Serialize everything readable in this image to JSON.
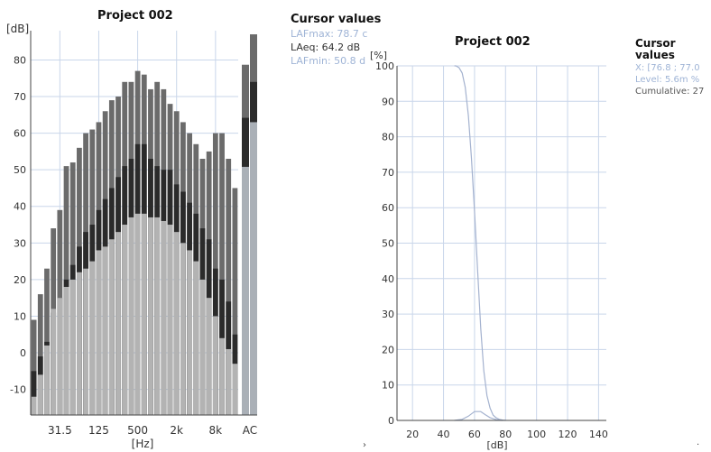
{
  "left_panel": {
    "title": "Project 002",
    "unit_label": "[dB]",
    "cursor": {
      "heading": "Cursor values",
      "lafmax": "LAFmax: 78.7 c",
      "laeq": "LAeq: 64.2 dB",
      "lafmin": "LAFmin: 50.8 d"
    }
  },
  "right_panel": {
    "title": "Project 002",
    "unit_label": "[%]",
    "cursor": {
      "heading": "Cursor values",
      "x": "X: [76.8 ; 77.0",
      "level": "Level: 5.6m %",
      "cumulative": "Cumulative: 27"
    }
  },
  "colors": {
    "lafmax": "#6b6b6b",
    "laeq": "#2b2b2b",
    "lafmin": "#b3b3b3",
    "ac_lafmin": "#aab0b7",
    "grid": "#c9d6ea",
    "curve": "#a4b2cf"
  },
  "chart_data": [
    {
      "type": "bar",
      "title": "Project 002",
      "ylabel": "[dB]",
      "xlabel": "[Hz]",
      "ylim": [
        -17,
        88
      ],
      "yticks": [
        -10,
        0,
        10,
        20,
        30,
        40,
        50,
        60,
        70,
        80
      ],
      "xtick_labels": [
        {
          "label": "31.5",
          "index": 4
        },
        {
          "label": "125",
          "index": 10
        },
        {
          "label": "500",
          "index": 16
        },
        {
          "label": "2k",
          "index": 22
        },
        {
          "label": "8k",
          "index": 28
        },
        {
          "label": "AC",
          "index": 31.5
        }
      ],
      "grid": true,
      "stacked": "overlay",
      "series": [
        {
          "key": "lafmax",
          "values": [
            9,
            16,
            23,
            34,
            39,
            51,
            52,
            56,
            60,
            61,
            63,
            66,
            69,
            70,
            74,
            74,
            77,
            76,
            72,
            74,
            72,
            68,
            66,
            63,
            60,
            57,
            53,
            55,
            60,
            60,
            53,
            45
          ]
        },
        {
          "key": "laeq",
          "values": [
            -5,
            -1,
            3,
            11,
            15,
            20,
            24,
            29,
            33,
            35,
            39,
            42,
            45,
            48,
            51,
            53,
            57,
            57,
            53,
            51,
            50,
            50,
            46,
            44,
            41,
            38,
            34,
            31,
            23,
            20,
            14,
            5
          ]
        },
        {
          "key": "lafmin",
          "values": [
            -12,
            -6,
            2,
            12,
            15,
            18,
            20,
            22,
            23,
            25,
            28,
            29,
            31,
            33,
            35,
            37,
            38,
            38,
            37,
            37,
            36,
            35,
            33,
            30,
            28,
            25,
            20,
            15,
            10,
            4,
            1,
            -3
          ]
        }
      ],
      "ac_bars": [
        {
          "lafmax": 78.7,
          "laeq": 64.2,
          "lafmin": 50.8
        },
        {
          "lafmax": 87,
          "laeq": 74,
          "lafmin": 63
        }
      ]
    },
    {
      "type": "line",
      "title": "Project 002",
      "ylabel": "[%]",
      "xlabel": "[dB]",
      "xlim": [
        10,
        145
      ],
      "ylim": [
        0,
        100
      ],
      "xticks": [
        20,
        40,
        60,
        80,
        100,
        120,
        140
      ],
      "yticks": [
        0,
        10,
        20,
        30,
        40,
        50,
        60,
        70,
        80,
        90,
        100
      ],
      "grid": true,
      "series": [
        {
          "key": "cumulative",
          "x": [
            47,
            48,
            50,
            52,
            54,
            56,
            58,
            60,
            62,
            64,
            66,
            68,
            70,
            72,
            74,
            76,
            78,
            80
          ],
          "y": [
            100,
            100,
            99.5,
            98,
            94,
            86,
            74,
            59,
            42,
            26,
            14,
            7,
            3.5,
            1.5,
            0.7,
            0.3,
            0.1,
            0
          ]
        },
        {
          "key": "level",
          "x": [
            47,
            52,
            56,
            60,
            64,
            67,
            70,
            74,
            78
          ],
          "y": [
            0,
            0.3,
            1.2,
            2.5,
            2.5,
            1.6,
            0.8,
            0.2,
            0
          ]
        }
      ]
    }
  ]
}
